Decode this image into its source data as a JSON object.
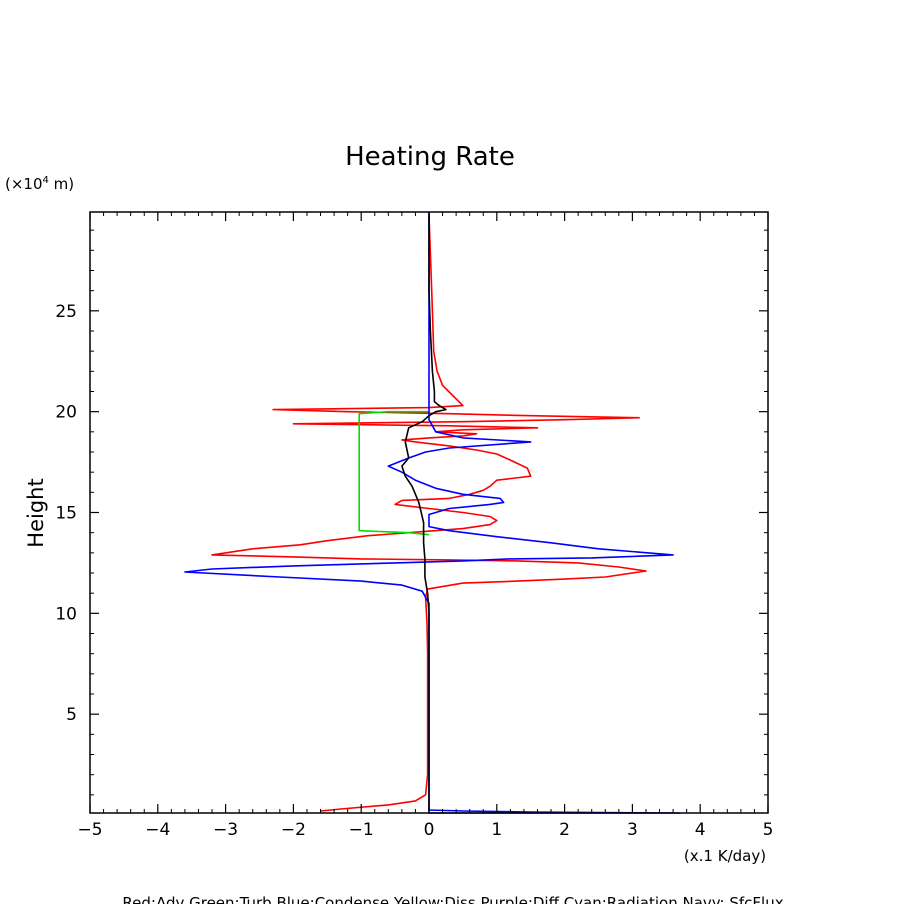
{
  "chart_data": {
    "type": "line",
    "title": "Heating Rate",
    "ylabel": "Height",
    "y_unit_prefix": "(×10",
    "y_unit_exp": "4",
    "y_unit_suffix": " m)",
    "xunit": "(x.1 K/day)",
    "footer": "Red:Adv  Green:Turb  Blue:Condense  Yellow:Diss  Purple:Diff  Cyan:Radiation  Navy: SfcFlux",
    "xlim": [
      -5,
      5
    ],
    "ylim": [
      0.1,
      29.9
    ],
    "x_ticks": [
      -5,
      -4,
      -3,
      -2,
      -1,
      0,
      1,
      2,
      3,
      4,
      5
    ],
    "y_ticks": [
      5,
      10,
      15,
      20,
      25
    ],
    "grid": false,
    "colors": {
      "Adv": "#ff0000",
      "Turb": "#00dd00",
      "Condense": "#0000ff",
      "Navy": "#000080",
      "Black": "#000000"
    },
    "series": [
      {
        "color_key": "Adv",
        "points": [
          [
            -1.6,
            0.2
          ],
          [
            -1.3,
            0.3
          ],
          [
            -0.6,
            0.5
          ],
          [
            -0.2,
            0.7
          ],
          [
            -0.05,
            1.0
          ],
          [
            -0.02,
            2.0
          ],
          [
            -0.02,
            5.0
          ],
          [
            -0.02,
            8.0
          ],
          [
            -0.03,
            9.5
          ],
          [
            -0.05,
            10.8
          ],
          [
            -0.02,
            11.2
          ],
          [
            0.5,
            11.5
          ],
          [
            1.3,
            11.6
          ],
          [
            2.0,
            11.7
          ],
          [
            2.6,
            11.8
          ],
          [
            3.2,
            12.1
          ],
          [
            2.8,
            12.3
          ],
          [
            2.2,
            12.5
          ],
          [
            1.3,
            12.6
          ],
          [
            0.3,
            12.65
          ],
          [
            -1.0,
            12.7
          ],
          [
            -2.0,
            12.8
          ],
          [
            -3.2,
            12.9
          ],
          [
            -2.6,
            13.2
          ],
          [
            -1.9,
            13.4
          ],
          [
            -1.5,
            13.6
          ],
          [
            -0.9,
            13.85
          ],
          [
            -0.3,
            14.0
          ],
          [
            0.5,
            14.2
          ],
          [
            0.9,
            14.4
          ],
          [
            1.0,
            14.6
          ],
          [
            0.9,
            14.8
          ],
          [
            0.5,
            15.0
          ],
          [
            0.0,
            15.2
          ],
          [
            -0.5,
            15.4
          ],
          [
            -0.4,
            15.6
          ],
          [
            0.3,
            15.7
          ],
          [
            0.6,
            15.9
          ],
          [
            0.8,
            16.1
          ],
          [
            0.9,
            16.3
          ],
          [
            1.0,
            16.6
          ],
          [
            1.5,
            16.8
          ],
          [
            1.45,
            17.2
          ],
          [
            1.2,
            17.6
          ],
          [
            1.0,
            17.9
          ],
          [
            0.7,
            18.1
          ],
          [
            0.3,
            18.3
          ],
          [
            -0.2,
            18.5
          ],
          [
            -0.4,
            18.6
          ],
          [
            0.0,
            18.7
          ],
          [
            0.5,
            18.8
          ],
          [
            0.7,
            18.9
          ],
          [
            0.1,
            19.0
          ],
          [
            0.5,
            19.1
          ],
          [
            1.6,
            19.2
          ],
          [
            0.3,
            19.3
          ],
          [
            -2.0,
            19.4
          ],
          [
            0.5,
            19.5
          ],
          [
            2.0,
            19.6
          ],
          [
            3.1,
            19.7
          ],
          [
            1.5,
            19.8
          ],
          [
            0.3,
            19.9
          ],
          [
            -1.2,
            20.0
          ],
          [
            -2.3,
            20.1
          ],
          [
            0.0,
            20.2
          ],
          [
            0.5,
            20.3
          ],
          [
            0.35,
            20.8
          ],
          [
            0.2,
            21.3
          ],
          [
            0.12,
            22.0
          ],
          [
            0.07,
            23.0
          ],
          [
            0.05,
            25.0
          ],
          [
            0.03,
            27.0
          ],
          [
            0.0,
            29.7
          ]
        ]
      },
      {
        "color_key": "Turb",
        "points": [
          [
            0.0,
            13.9
          ],
          [
            -0.3,
            14.0
          ],
          [
            -1.03,
            14.1
          ],
          [
            -1.03,
            15.0
          ],
          [
            -1.03,
            17.0
          ],
          [
            -1.03,
            19.9
          ],
          [
            -0.6,
            20.0
          ],
          [
            -0.1,
            20.0
          ],
          [
            0.0,
            20.0
          ]
        ]
      },
      {
        "color_key": "Condense",
        "points": [
          [
            0.0,
            0.1
          ],
          [
            0.0,
            0.25
          ],
          [
            0.5,
            0.2
          ],
          [
            1.5,
            0.15
          ],
          [
            2.5,
            0.12
          ],
          [
            3.7,
            0.1
          ],
          [
            0.0,
            0.1
          ],
          [
            0.0,
            1.0
          ],
          [
            0.0,
            5.0
          ],
          [
            0.0,
            10.5
          ],
          [
            -0.1,
            11.1
          ],
          [
            -0.4,
            11.4
          ],
          [
            -1.0,
            11.6
          ],
          [
            -2.2,
            11.8
          ],
          [
            -3.6,
            12.05
          ],
          [
            -3.2,
            12.2
          ],
          [
            -2.0,
            12.35
          ],
          [
            -0.5,
            12.5
          ],
          [
            0.5,
            12.6
          ],
          [
            1.2,
            12.7
          ],
          [
            2.4,
            12.75
          ],
          [
            3.6,
            12.9
          ],
          [
            2.5,
            13.2
          ],
          [
            1.8,
            13.5
          ],
          [
            1.0,
            13.8
          ],
          [
            0.3,
            14.1
          ],
          [
            0.0,
            14.3
          ],
          [
            0.0,
            14.6
          ],
          [
            0.0,
            14.9
          ],
          [
            0.3,
            15.2
          ],
          [
            0.9,
            15.4
          ],
          [
            1.1,
            15.5
          ],
          [
            1.05,
            15.7
          ],
          [
            0.5,
            15.9
          ],
          [
            0.1,
            16.2
          ],
          [
            -0.2,
            16.6
          ],
          [
            -0.4,
            17.0
          ],
          [
            -0.6,
            17.3
          ],
          [
            -0.3,
            17.7
          ],
          [
            -0.05,
            18.0
          ],
          [
            0.3,
            18.2
          ],
          [
            1.5,
            18.5
          ],
          [
            0.5,
            18.7
          ],
          [
            0.1,
            19.0
          ],
          [
            0.0,
            19.6
          ],
          [
            0.0,
            22.0
          ],
          [
            0.0,
            29.9
          ]
        ]
      },
      {
        "color_key": "Black",
        "points": [
          [
            0.0,
            0.2
          ],
          [
            0.0,
            5.0
          ],
          [
            0.0,
            10.0
          ],
          [
            -0.02,
            11.0
          ],
          [
            -0.06,
            11.8
          ],
          [
            -0.06,
            12.7
          ],
          [
            -0.08,
            13.5
          ],
          [
            -0.08,
            14.5
          ],
          [
            -0.15,
            15.5
          ],
          [
            -0.25,
            16.3
          ],
          [
            -0.35,
            16.8
          ],
          [
            -0.4,
            17.3
          ],
          [
            -0.3,
            17.7
          ],
          [
            -0.35,
            18.5
          ],
          [
            -0.3,
            19.2
          ],
          [
            -0.1,
            19.5
          ],
          [
            0.0,
            19.8
          ],
          [
            0.1,
            20.0
          ],
          [
            0.25,
            20.1
          ],
          [
            0.15,
            20.3
          ],
          [
            0.08,
            20.5
          ],
          [
            0.08,
            21.0
          ],
          [
            0.05,
            22.0
          ],
          [
            0.02,
            24.0
          ],
          [
            0.0,
            26.0
          ],
          [
            0.0,
            29.9
          ]
        ]
      }
    ]
  }
}
